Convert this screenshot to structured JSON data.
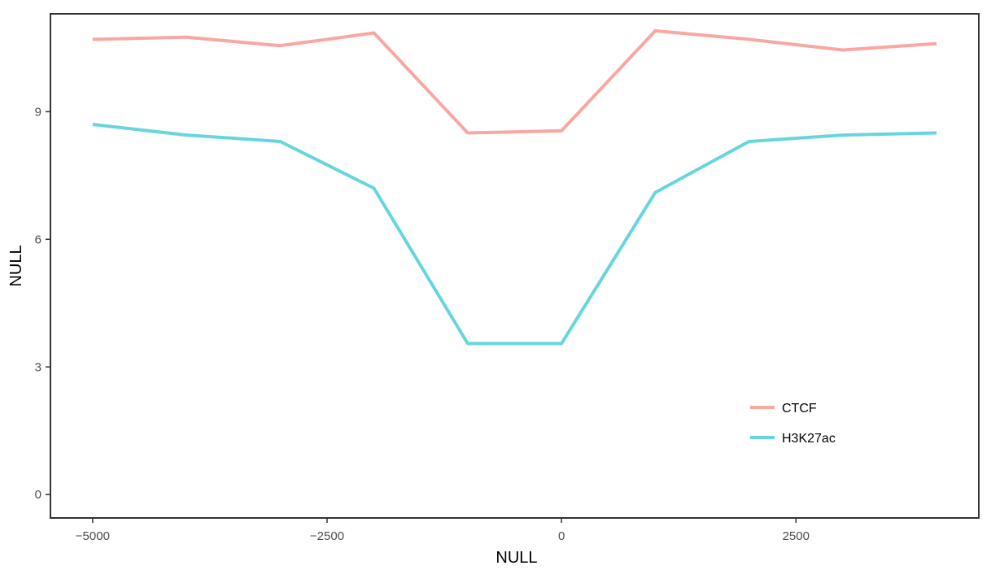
{
  "chart_data": {
    "type": "line",
    "title": "",
    "xlabel": "NULL",
    "ylabel": "NULL",
    "xlim": [
      -5450,
      4450
    ],
    "ylim": [
      -0.55,
      11.3
    ],
    "x_ticks": [
      -5000,
      -2500,
      0,
      2500
    ],
    "x_tick_labels": [
      "−5000",
      "−2500",
      "0",
      "2500"
    ],
    "y_ticks": [
      0,
      3,
      6,
      9
    ],
    "y_tick_labels": [
      "0",
      "3",
      "6",
      "9"
    ],
    "grid": false,
    "legend_position": "bottom-right",
    "x": [
      -5000,
      -4000,
      -3000,
      -2000,
      -1000,
      0,
      1000,
      2000,
      3000,
      4000
    ],
    "series": [
      {
        "name": "CTCF",
        "color": "#f8a7a1",
        "values": [
          10.7,
          10.75,
          10.55,
          10.85,
          8.5,
          8.55,
          10.9,
          10.7,
          10.45,
          10.6
        ]
      },
      {
        "name": "H3K27ac",
        "color": "#66d6dc",
        "values": [
          8.7,
          8.45,
          8.3,
          7.2,
          3.55,
          3.55,
          7.1,
          8.3,
          8.45,
          8.5
        ]
      }
    ]
  }
}
